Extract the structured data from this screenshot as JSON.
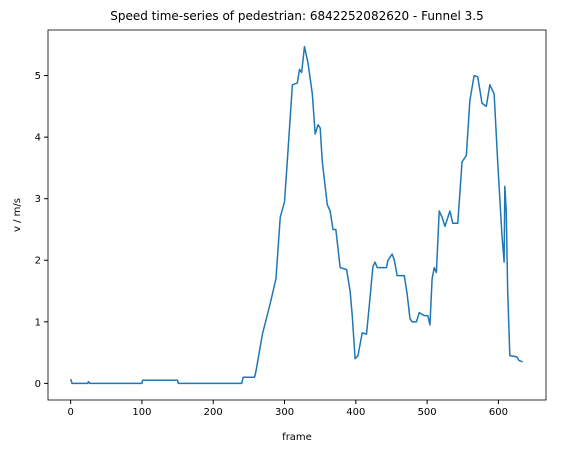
{
  "chart_data": {
    "type": "line",
    "title": "Speed time-series of pedestrian: 6842252082620 - Funnel 3.5",
    "x_label": "frame",
    "y_label": "v / m/s",
    "x": [
      0,
      2,
      24,
      25,
      27,
      100,
      101,
      150,
      151,
      240,
      242,
      258,
      260,
      269,
      280,
      288,
      294,
      300,
      305,
      311,
      318,
      321,
      324,
      328,
      333,
      339,
      343,
      347,
      350,
      353,
      360,
      364,
      368,
      372,
      378,
      387,
      392,
      395,
      399,
      403,
      409,
      415,
      420,
      424,
      427,
      430,
      443,
      445,
      451,
      454,
      458,
      468,
      472,
      476,
      479,
      485,
      489,
      496,
      501,
      504,
      507,
      510,
      513,
      517,
      521,
      525,
      532,
      536,
      543,
      549,
      555,
      560,
      566,
      571,
      577,
      583,
      588,
      594,
      599,
      605,
      608,
      609,
      611,
      613,
      616,
      626,
      629,
      634
    ],
    "series": [
      {
        "name": "speed",
        "color": "#1f77b4",
        "values": [
          0.07,
          0,
          0,
          0.03,
          0,
          0,
          0.05,
          0.05,
          0,
          0,
          0.1,
          0.1,
          0.2,
          0.8,
          1.3,
          1.7,
          2.7,
          2.95,
          3.8,
          4.85,
          4.88,
          5.1,
          5.05,
          5.47,
          5.2,
          4.7,
          4.05,
          4.2,
          4.15,
          3.6,
          2.9,
          2.8,
          2.5,
          2.5,
          1.88,
          1.85,
          1.5,
          1.1,
          0.4,
          0.45,
          0.82,
          0.8,
          1.4,
          1.9,
          1.97,
          1.88,
          1.88,
          2.0,
          2.1,
          2.0,
          1.75,
          1.75,
          1.45,
          1.05,
          1.0,
          1.0,
          1.15,
          1.1,
          1.1,
          0.95,
          1.7,
          1.88,
          1.8,
          2.8,
          2.7,
          2.55,
          2.8,
          2.6,
          2.6,
          3.6,
          3.7,
          4.6,
          5.0,
          4.98,
          4.55,
          4.5,
          4.85,
          4.7,
          3.6,
          2.4,
          1.97,
          3.2,
          2.8,
          1.5,
          0.45,
          0.43,
          0.37,
          0.35
        ]
      }
    ],
    "xlim": [
      -31.75,
      666.75
    ],
    "ylim": [
      -0.27,
      5.74
    ],
    "xticks": [
      0,
      100,
      200,
      300,
      400,
      500,
      600
    ],
    "yticks": [
      0,
      1,
      2,
      3,
      4,
      5
    ]
  }
}
